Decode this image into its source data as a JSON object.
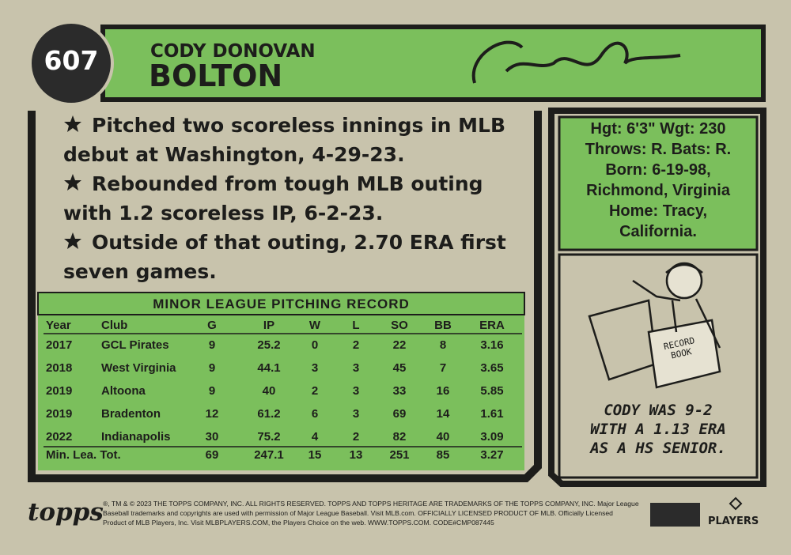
{
  "header": {
    "number": "607",
    "first_name": "CODY DONOVAN",
    "last_name": "BOLTON"
  },
  "highlights": [
    "Pitched two scoreless innings in MLB debut at Washington, 4-29-23.",
    "Rebounded from tough MLB outing with 1.2 scoreless IP, 6-2-23.",
    "Outside of that outing, 2.70 ERA first seven games."
  ],
  "bio": [
    "Hgt: 6'3\"  Wgt: 230",
    "Throws: R.   Bats: R.",
    "Born: 6-19-98,",
    "Richmond, Virginia",
    "Home: Tracy,",
    "California."
  ],
  "cartoon": {
    "book": "RECORD BOOK",
    "caption": [
      "CODY WAS 9-2",
      "WITH A 1.13 ERA",
      "AS A HS SENIOR."
    ]
  },
  "table": {
    "title": "MINOR LEAGUE PITCHING RECORD",
    "columns": [
      "Year",
      "Club",
      "G",
      "IP",
      "W",
      "L",
      "SO",
      "BB",
      "ERA"
    ],
    "rows": [
      [
        "2017",
        "GCL Pirates",
        "9",
        "25.2",
        "0",
        "2",
        "22",
        "8",
        "3.16"
      ],
      [
        "2018",
        "West Virginia",
        "9",
        "44.1",
        "3",
        "3",
        "45",
        "7",
        "3.65"
      ],
      [
        "2019",
        "Altoona",
        "9",
        "40",
        "2",
        "3",
        "33",
        "16",
        "5.85"
      ],
      [
        "2019",
        "Bradenton",
        "12",
        "61.2",
        "6",
        "3",
        "69",
        "14",
        "1.61"
      ],
      [
        "2022",
        "Indianapolis",
        "30",
        "75.2",
        "4",
        "2",
        "82",
        "40",
        "3.09"
      ]
    ],
    "total": [
      "Min. Lea. Tot.",
      "69",
      "247.1",
      "15",
      "13",
      "251",
      "85",
      "3.27"
    ]
  },
  "footer": {
    "brand": "topps",
    "legal": [
      "®, TM & © 2023 THE TOPPS COMPANY, INC. ALL RIGHTS RESERVED. TOPPS AND TOPPS HERITAGE ARE TRADEMARKS OF THE TOPPS COMPANY, INC. Major League",
      "Baseball trademarks and copyrights are used with permission of Major League Baseball. Visit MLB.com. OFFICIALLY LICENSED PRODUCT OF MLB. Officially Licensed",
      "Product of MLB Players, Inc. Visit MLBPLAYERS.COM, the Players Choice on the web. WWW.TOPPS.COM. CODE#CMP087445"
    ],
    "players": "PLAYERS"
  }
}
